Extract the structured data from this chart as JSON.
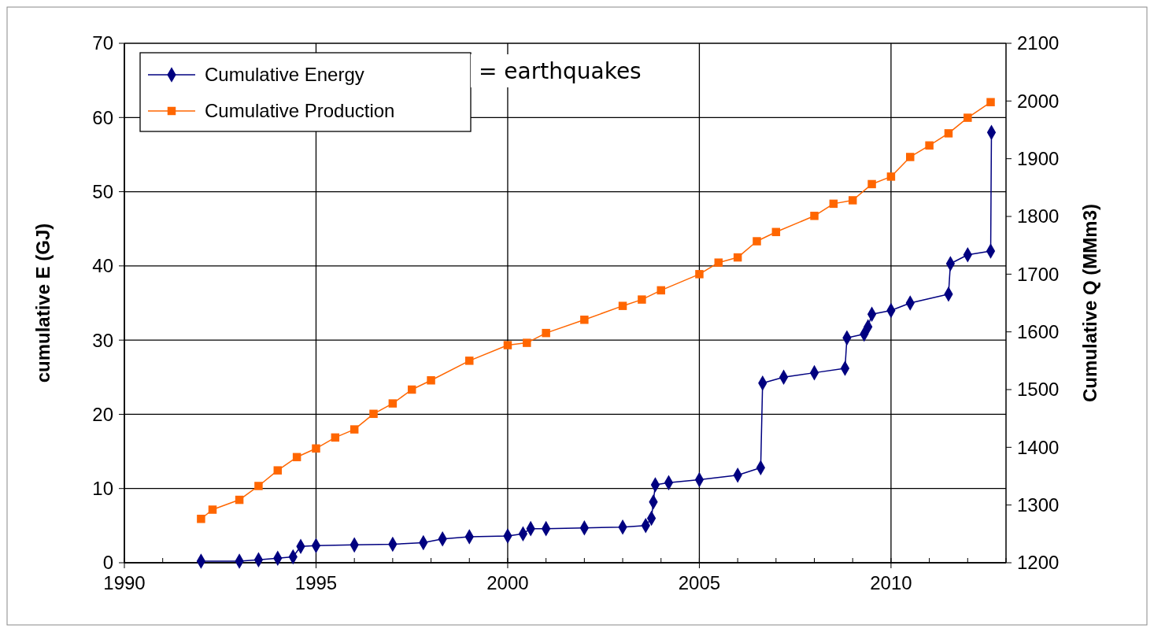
{
  "chart_data": {
    "type": "line",
    "ylabel": "cumulative E (GJ)",
    "y2label": "Cumulative Q (MMm3)",
    "xlim": [
      1990,
      2013
    ],
    "xticks": [
      1990,
      1995,
      2000,
      2005,
      2010
    ],
    "ylim": [
      0,
      70
    ],
    "yticks": [
      0,
      10,
      20,
      30,
      40,
      50,
      60,
      70
    ],
    "y2lim": [
      1200,
      2100
    ],
    "y2ticks": [
      1200,
      1300,
      1400,
      1500,
      1600,
      1700,
      1800,
      1900,
      2000,
      2100
    ],
    "grid": true,
    "legend": "top left",
    "line_style": "solid",
    "annotations": [
      "= earthquakes"
    ],
    "series": [
      {
        "name": "Cumulative Energy",
        "color": "#000080",
        "marker": "diamond",
        "x": [
          1992,
          1993,
          1993.5,
          1994,
          1994.4,
          1994.6,
          1995,
          1996,
          1997,
          1997.8,
          1998.3,
          1999,
          2000,
          2000.4,
          2000.6,
          2001,
          2002,
          2003,
          2003.6,
          2003.75,
          2003.8,
          2003.85,
          2004.2,
          2005,
          2006,
          2006.6,
          2006.65,
          2007.2,
          2008,
          2008.8,
          2008.85,
          2009.3,
          2009.4,
          2009.5,
          2010,
          2010.5,
          2011.5,
          2011.55,
          2012,
          2012.6,
          2012.62
        ],
        "values": [
          0.2,
          0.2,
          0.4,
          0.6,
          0.8,
          2.2,
          2.3,
          2.4,
          2.5,
          2.7,
          3.2,
          3.5,
          3.6,
          3.9,
          4.6,
          4.6,
          4.7,
          4.8,
          5.0,
          6.0,
          8.2,
          10.5,
          10.8,
          11.2,
          11.8,
          12.8,
          24.2,
          25.0,
          25.6,
          26.2,
          30.3,
          30.8,
          31.8,
          33.5,
          34.0,
          35.0,
          36.2,
          40.3,
          41.5,
          42.0,
          58.0
        ]
      },
      {
        "name": "Cumulative Production",
        "color": "#ff6600",
        "marker": "square",
        "axis": "y2",
        "x": [
          1992,
          1992.3,
          1993,
          1993.5,
          1994,
          1994.5,
          1995,
          1995.5,
          1996,
          1996.5,
          1997,
          1997.5,
          1998,
          1999,
          2000,
          2000.5,
          2001,
          2002,
          2003,
          2003.5,
          2004,
          2005,
          2005.5,
          2006,
          2006.5,
          2007,
          2008,
          2008.5,
          2009,
          2009.5,
          2010,
          2010.5,
          2011,
          2011.5,
          2012,
          2012.6
        ],
        "values": [
          1276,
          1292,
          1309,
          1333,
          1360,
          1383,
          1398,
          1417,
          1431,
          1458,
          1476,
          1500,
          1516,
          1550,
          1577,
          1581,
          1598,
          1621,
          1645,
          1656,
          1672,
          1700,
          1720,
          1729,
          1757,
          1773,
          1801,
          1822,
          1828,
          1856,
          1869,
          1903,
          1923,
          1944,
          1971,
          1998
        ]
      }
    ]
  }
}
